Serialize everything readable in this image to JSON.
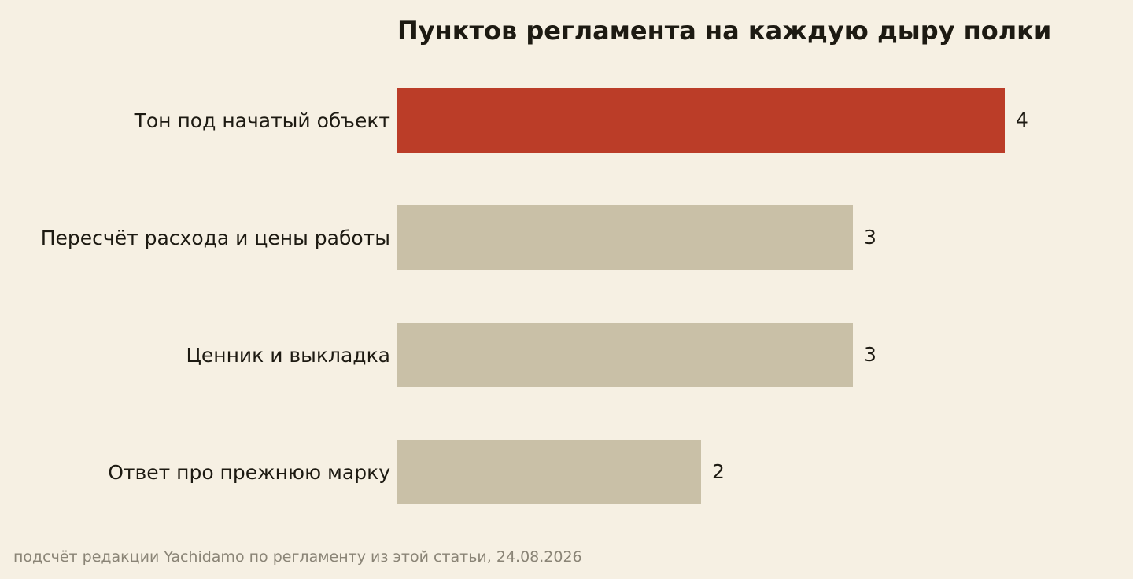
{
  "chart_data": {
    "type": "bar",
    "orientation": "horizontal",
    "title": "Пунктов регламента на каждую дыру полки",
    "categories": [
      "Тон под начатый объект",
      "Пересчёт расхода и цены работы",
      "Ценник и выкладка",
      "Ответ про прежнюю марку"
    ],
    "values": [
      4,
      3,
      3,
      2
    ],
    "xlim": [
      0,
      4
    ],
    "grid": false,
    "legend": "none",
    "colors": {
      "highlight": "#bb3d28",
      "default": "#c9c0a7"
    },
    "highlight_index": 0,
    "source": "подсчёт редакции Yachidamo по регламенту из этой статьи, 24.08.2026"
  }
}
